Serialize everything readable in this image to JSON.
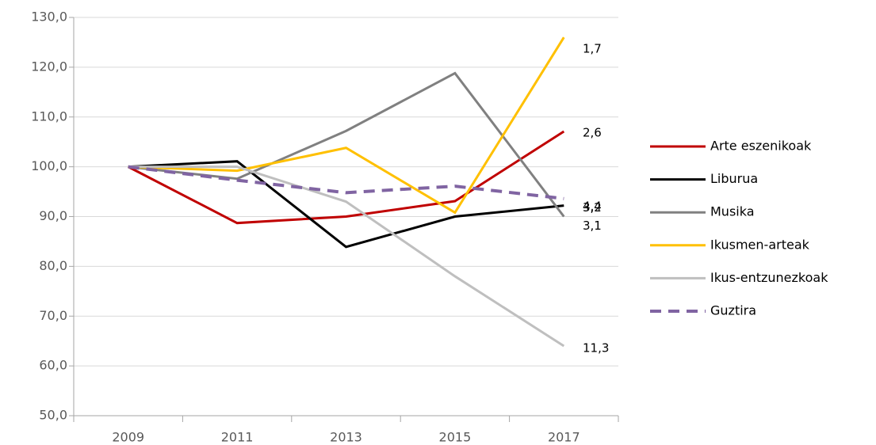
{
  "chart_data": {
    "type": "line",
    "categories": [
      "2009",
      "2011",
      "2013",
      "2015",
      "2017"
    ],
    "ylim": [
      50,
      130
    ],
    "yticks": [
      {
        "value": 50,
        "label": "50,0"
      },
      {
        "value": 60,
        "label": "60,0"
      },
      {
        "value": 70,
        "label": "70,0"
      },
      {
        "value": 80,
        "label": "80,0"
      },
      {
        "value": 90,
        "label": "90,0"
      },
      {
        "value": 100,
        "label": "100,0"
      },
      {
        "value": 110,
        "label": "110,0"
      },
      {
        "value": 120,
        "label": "120,0"
      },
      {
        "value": 130,
        "label": "130,0"
      }
    ],
    "grid": true,
    "legend": "right",
    "series": [
      {
        "name": "Arte eszenikoak",
        "color": "#c00000",
        "values": [
          100,
          88.7,
          90,
          93.1,
          107.1
        ],
        "end_label": "2,6"
      },
      {
        "name": "Liburua",
        "color": "#000000",
        "values": [
          100,
          101.1,
          83.9,
          90,
          92.2
        ],
        "end_label": "3,2"
      },
      {
        "name": "Musika",
        "color": "#808080",
        "values": [
          100,
          97.6,
          107.2,
          118.8,
          90
        ],
        "end_label": "3,1"
      },
      {
        "name": "Ikusmen-arteak",
        "color": "#ffc000",
        "values": [
          100,
          99.2,
          103.8,
          90.8,
          126
        ],
        "end_label": "1,7"
      },
      {
        "name": "Ikus-entzunezkoak",
        "color": "#bfbfbf",
        "values": [
          100,
          100,
          93,
          78,
          64
        ],
        "end_label": "11,3"
      },
      {
        "name": "Guztira",
        "color": "#8064a2",
        "dashed": true,
        "values": [
          100,
          97.3,
          94.8,
          96.1,
          93.6
        ],
        "end_label": "4,4"
      }
    ]
  }
}
